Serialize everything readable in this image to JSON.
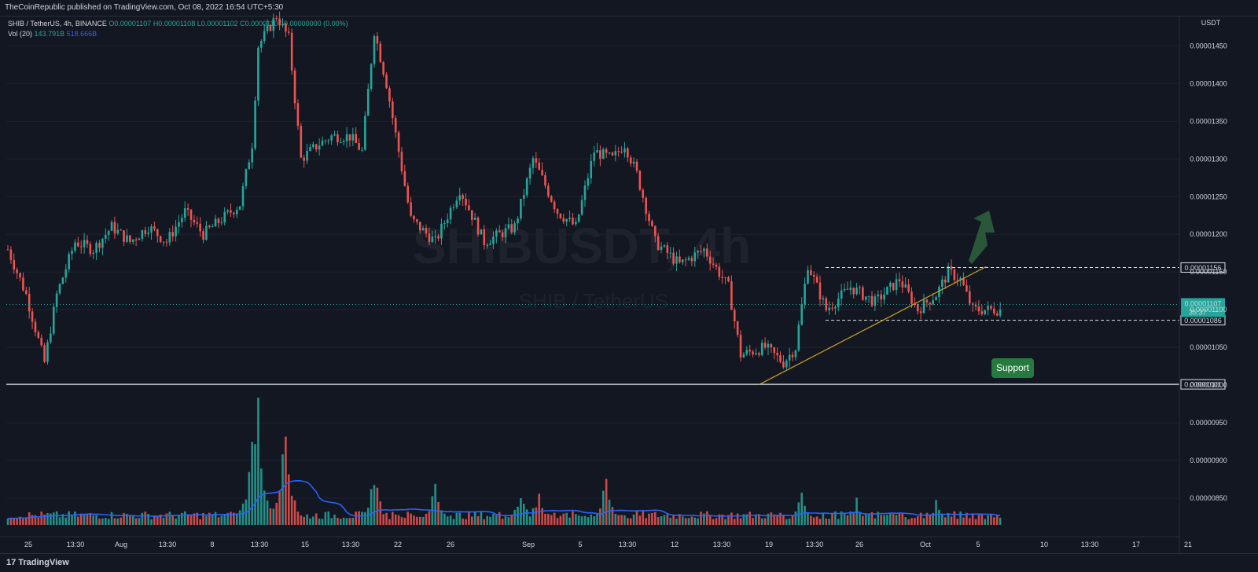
{
  "header": {
    "published": "TheCoinRepublic published on TradingView.com, Oct 08, 2022 16:54 UTC+5:30"
  },
  "footer": {
    "brand": "TradingView"
  },
  "colors": {
    "bg": "#131722",
    "up": "#26a69a",
    "down": "#ef5350",
    "volume_ma": "#2962ff",
    "trendline": "#c9a227",
    "arrow": "#2e5e3c",
    "support_badge": "#267a3f"
  },
  "chart_data": {
    "type": "candlestick",
    "title": "SHIB / TetherUS, 4h, BINANCE",
    "ohlc_label": {
      "o": "O0.00001107",
      "h": "H0.00001108",
      "l": "L0.00001102",
      "c": "C0.00001107",
      "chg": "0.00000000 (0.00%)"
    },
    "volume_label": {
      "name": "Vol (20)",
      "v1": "143.791B",
      "v2": "518.666B"
    },
    "watermark": {
      "symbol": "SHIBUSDT, 4h",
      "name": "SHIB / TetherUS"
    },
    "currency": "USDT",
    "ylim": [
      8e-06,
      1.49e-05
    ],
    "y_ticks": [
      1.45e-05,
      1.4e-05,
      1.35e-05,
      1.3e-05,
      1.25e-05,
      1.2e-05,
      1.15e-05,
      1.1e-05,
      1.05e-05,
      1e-05,
      9.5e-06,
      9e-06,
      8.5e-06
    ],
    "y_tick_labels": [
      "0.00001450",
      "0.00001400",
      "0.00001350",
      "0.00001300",
      "0.00001250",
      "0.00001200",
      "0.00001150",
      "0.00001100",
      "0.00001050",
      "0.00001000",
      "0.00000950",
      "0.00000900",
      "0.00000850"
    ],
    "x_ticks": [
      "25",
      "13:30",
      "Aug",
      "13:30",
      "8",
      "13:30",
      "15",
      "13:30",
      "22",
      "26",
      "Sep",
      "5",
      "13:30",
      "12",
      "13:30",
      "19",
      "13:30",
      "26",
      "Oct",
      "5",
      "10",
      "13:30",
      "17",
      "21"
    ],
    "price_markers": [
      {
        "label": "0.00001156",
        "value": 1.156e-05,
        "style": "dashed"
      },
      {
        "label": "0.00001086",
        "value": 1.086e-05,
        "style": "dashed"
      },
      {
        "label": "0.00001001",
        "value": 1.001e-05,
        "style": "solid"
      }
    ],
    "last_price": {
      "label": "0.00001107",
      "countdown": "35:37",
      "value": 1.107e-05
    },
    "support_label": "Support",
    "anchors": [
      [
        0,
        1.18e-05
      ],
      [
        6,
        1.12e-05
      ],
      [
        10,
        1.06e-05
      ],
      [
        12,
        1.03e-05
      ],
      [
        16,
        1.12e-05
      ],
      [
        22,
        1.19e-05
      ],
      [
        28,
        1.18e-05
      ],
      [
        34,
        1.21e-05
      ],
      [
        40,
        1.19e-05
      ],
      [
        46,
        1.21e-05
      ],
      [
        52,
        1.19e-05
      ],
      [
        58,
        1.23e-05
      ],
      [
        64,
        1.2e-05
      ],
      [
        70,
        1.22e-05
      ],
      [
        76,
        1.24e-05
      ],
      [
        80,
        1.32e-05
      ],
      [
        82,
        1.45e-05
      ],
      [
        88,
        1.49e-05
      ],
      [
        92,
        1.46e-05
      ],
      [
        96,
        1.3e-05
      ],
      [
        102,
        1.32e-05
      ],
      [
        106,
        1.33e-05
      ],
      [
        112,
        1.33e-05
      ],
      [
        116,
        1.31e-05
      ],
      [
        120,
        1.47e-05
      ],
      [
        124,
        1.4e-05
      ],
      [
        128,
        1.31e-05
      ],
      [
        132,
        1.22e-05
      ],
      [
        140,
        1.19e-05
      ],
      [
        148,
        1.26e-05
      ],
      [
        156,
        1.19e-05
      ],
      [
        166,
        1.21e-05
      ],
      [
        172,
        1.3e-05
      ],
      [
        180,
        1.23e-05
      ],
      [
        186,
        1.21e-05
      ],
      [
        192,
        1.31e-05
      ],
      [
        198,
        1.3e-05
      ],
      [
        202,
        1.32e-05
      ],
      [
        206,
        1.28e-05
      ],
      [
        212,
        1.19e-05
      ],
      [
        220,
        1.16e-05
      ],
      [
        228,
        1.18e-05
      ],
      [
        236,
        1.13e-05
      ],
      [
        240,
        1.04e-05
      ],
      [
        248,
        1.05e-05
      ],
      [
        254,
        1.03e-05
      ],
      [
        258,
        1.05e-05
      ],
      [
        262,
        1.16e-05
      ],
      [
        268,
        1.1e-05
      ],
      [
        276,
        1.13e-05
      ],
      [
        284,
        1.11e-05
      ],
      [
        292,
        1.14e-05
      ],
      [
        298,
        1.1e-05
      ],
      [
        304,
        1.12e-05
      ],
      [
        308,
        1.15e-05
      ],
      [
        312,
        1.14e-05
      ],
      [
        316,
        1.1e-05
      ],
      [
        320,
        1.1e-05
      ]
    ],
    "volume_spikes": [
      [
        82,
        0.95
      ],
      [
        91,
        0.85
      ],
      [
        80,
        0.7
      ],
      [
        120,
        0.45
      ],
      [
        140,
        0.35
      ],
      [
        168,
        0.3
      ],
      [
        174,
        0.3
      ],
      [
        196,
        0.4
      ],
      [
        260,
        0.3
      ],
      [
        278,
        0.2
      ],
      [
        304,
        0.2
      ]
    ]
  }
}
